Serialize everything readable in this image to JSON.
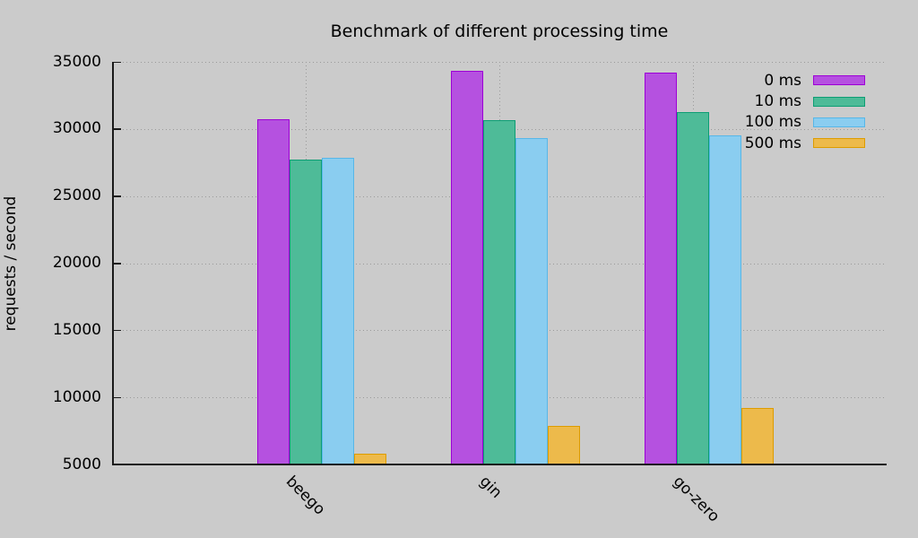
{
  "background": "#cbcbcb",
  "grid_color": "#9a9a9a",
  "chart_data": {
    "type": "bar",
    "title": "Benchmark of different processing time",
    "xlabel": "",
    "ylabel": "requests / second",
    "categories": [
      "beego",
      "gin",
      "go-zero"
    ],
    "series": [
      {
        "name": "0 ms",
        "fill": "#b551e0",
        "border": "#9d00d6",
        "values": [
          30700,
          34300,
          34200
        ]
      },
      {
        "name": "10 ms",
        "fill": "#4ebb98",
        "border": "#0d9e74",
        "values": [
          27700,
          30650,
          31250
        ]
      },
      {
        "name": "100 ms",
        "fill": "#8acdf0",
        "border": "#57b7e8",
        "values": [
          27850,
          29350,
          29550
        ]
      },
      {
        "name": "500 ms",
        "fill": "#edba4b",
        "border": "#dd9c00",
        "values": [
          5800,
          7900,
          9200
        ]
      }
    ],
    "ylim": [
      5000,
      35000
    ],
    "ytick_step": 5000,
    "grid": "dotted",
    "legend_position": "top-right"
  }
}
